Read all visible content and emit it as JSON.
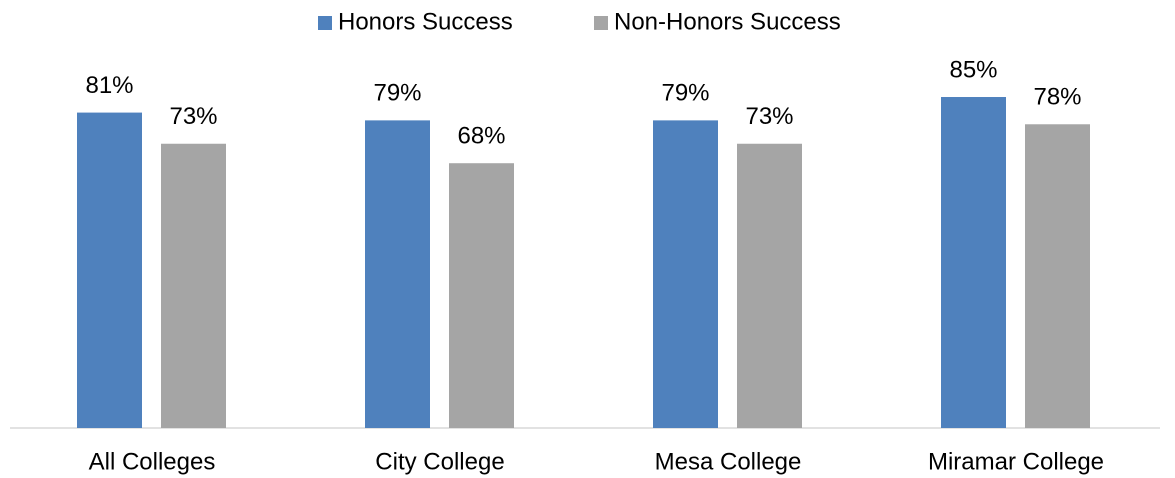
{
  "chart_data": {
    "type": "bar",
    "categories": [
      "All Colleges",
      "City College",
      "Mesa College",
      "Miramar College"
    ],
    "series": [
      {
        "name": "Honors Success",
        "color": "#4f81bd",
        "values": [
          81,
          79,
          79,
          85
        ],
        "value_labels": [
          "81%",
          "79%",
          "79%",
          "85%"
        ]
      },
      {
        "name": "Non-Honors Success",
        "color": "#a5a5a5",
        "values": [
          73,
          68,
          73,
          78
        ],
        "value_labels": [
          "73%",
          "68%",
          "73%",
          "78%"
        ]
      }
    ],
    "ylim": [
      0,
      100
    ],
    "legend": "top"
  }
}
